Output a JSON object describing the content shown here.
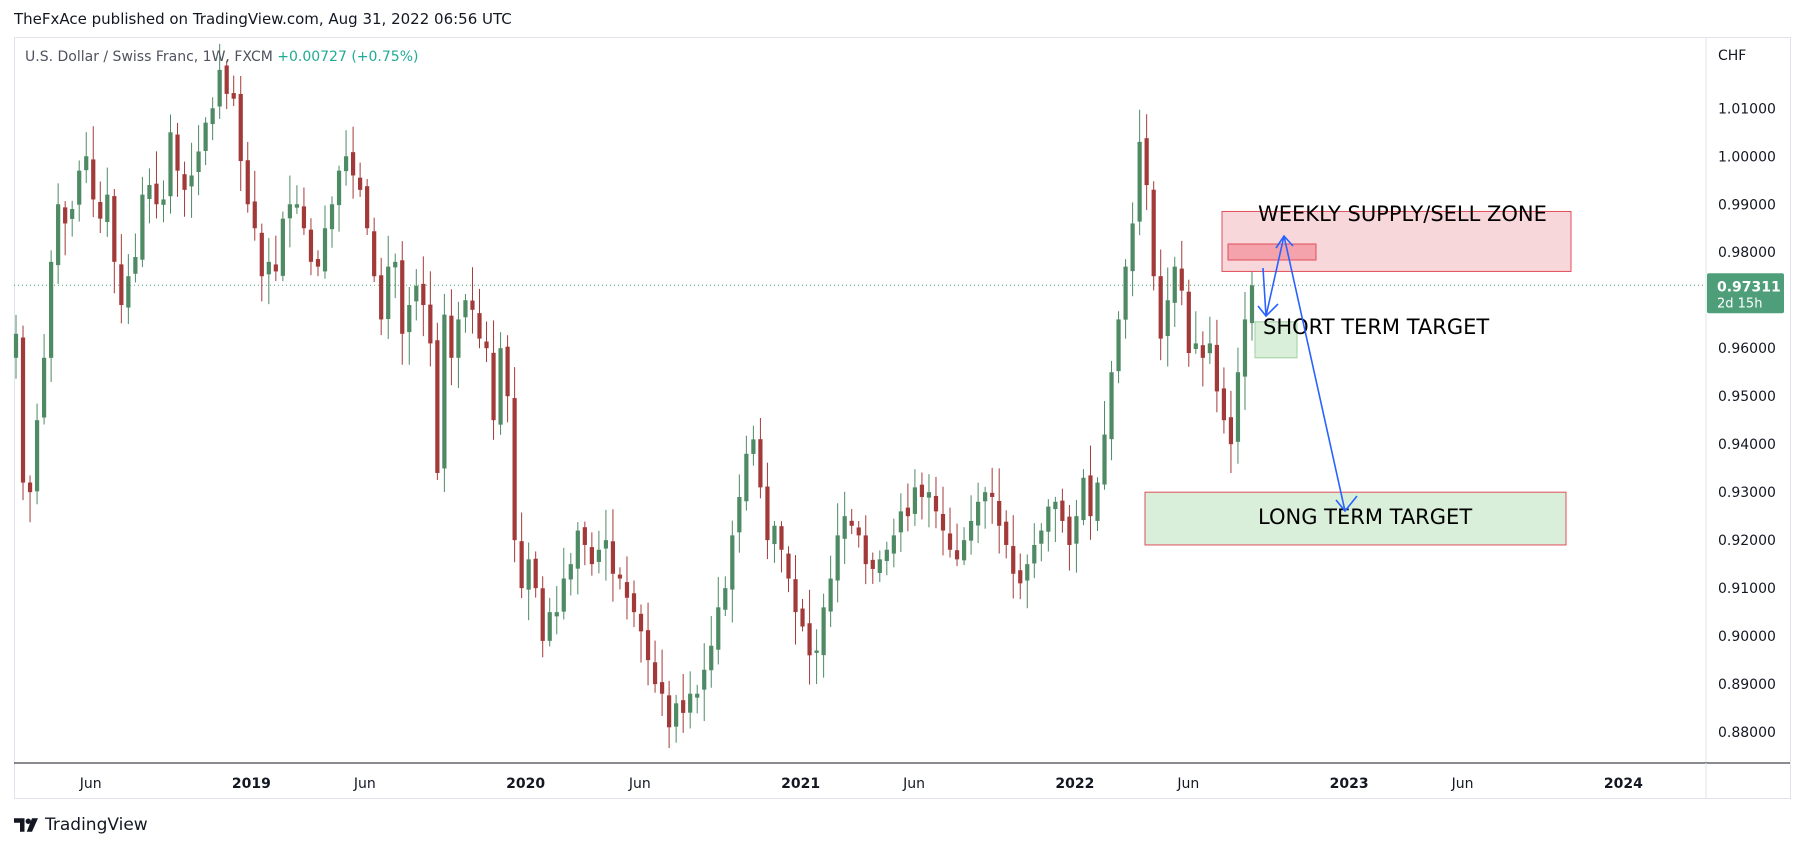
{
  "header": {
    "published_by": "TheFxAce published on TradingView.com, Aug 31, 2022 06:56 UTC",
    "symbol_desc": "U.S. Dollar / Swiss Franc, 1W, FXCM",
    "change": "+0.00727 (+0.75%)"
  },
  "footer": {
    "brand": "TradingView"
  },
  "colors": {
    "up": "#4e8a64",
    "down": "#a33a3a",
    "supply_zone": "#f8d7da",
    "target_zone": "#d9efd9",
    "arrow": "#2962ff",
    "price_line": "#4e9e7a"
  },
  "chart_data": {
    "type": "candlestick",
    "symbol": "U.S. Dollar / Swiss Franc",
    "timeframe": "1W",
    "source": "FXCM",
    "currency_label": "CHF",
    "ylim": [
      0.877,
      1.0235
    ],
    "y_ticks": [
      "1.01000",
      "1.00000",
      "0.99000",
      "0.98000",
      "0.97000",
      "0.96000",
      "0.95000",
      "0.94000",
      "0.93000",
      "0.92000",
      "0.91000",
      "0.90000",
      "0.89000",
      "0.88000"
    ],
    "x_ticks": [
      {
        "label": "Jun",
        "bold": false,
        "date": "2018-06-01"
      },
      {
        "label": "2019",
        "bold": true,
        "date": "2019-01-01"
      },
      {
        "label": "Jun",
        "bold": false,
        "date": "2019-06-01"
      },
      {
        "label": "2020",
        "bold": true,
        "date": "2020-01-01"
      },
      {
        "label": "Jun",
        "bold": false,
        "date": "2020-06-01"
      },
      {
        "label": "2021",
        "bold": true,
        "date": "2021-01-01"
      },
      {
        "label": "Jun",
        "bold": false,
        "date": "2021-06-01"
      },
      {
        "label": "2022",
        "bold": true,
        "date": "2022-01-01"
      },
      {
        "label": "Jun",
        "bold": false,
        "date": "2022-06-01"
      },
      {
        "label": "2023",
        "bold": true,
        "date": "2023-01-01"
      },
      {
        "label": "Jun",
        "bold": false,
        "date": "2023-06-01"
      },
      {
        "label": "2024",
        "bold": true,
        "date": "2024-01-01"
      }
    ],
    "x_range": [
      "2018-02-19",
      "2024-04-20"
    ],
    "last_price": 0.97311,
    "last_price_label": "0.97311",
    "countdown_label": "2d 15h",
    "close_series": [
      0.963,
      0.932,
      0.93,
      0.945,
      0.958,
      0.978,
      0.99,
      0.986,
      0.989,
      0.997,
      1.0,
      0.991,
      0.987,
      0.992,
      0.978,
      0.969,
      0.975,
      0.979,
      0.992,
      0.994,
      0.99,
      0.991,
      1.005,
      0.997,
      0.993,
      0.996,
      1.001,
      1.007,
      1.01,
      1.018,
      1.013,
      1.012,
      0.999,
      0.99,
      0.985,
      0.975,
      0.978,
      0.976,
      0.987,
      0.99,
      0.99,
      0.985,
      0.978,
      0.977,
      0.985,
      0.99,
      0.997,
      1.0,
      0.996,
      0.993,
      0.985,
      0.975,
      0.966,
      0.977,
      0.978,
      0.963,
      0.969,
      0.973,
      0.969,
      0.961,
      0.934,
      0.967,
      0.958,
      0.966,
      0.97,
      0.968,
      0.962,
      0.96,
      0.945,
      0.96,
      0.95,
      0.92,
      0.91,
      0.916,
      0.91,
      0.899,
      0.905,
      0.905,
      0.912,
      0.915,
      0.922,
      0.919,
      0.915,
      0.918,
      0.92,
      0.913,
      0.912,
      0.908,
      0.905,
      0.901,
      0.895,
      0.89,
      0.888,
      0.881,
      0.886,
      0.884,
      0.888,
      0.888,
      0.893,
      0.898,
      0.906,
      0.91,
      0.921,
      0.929,
      0.938,
      0.941,
      0.931,
      0.92,
      0.923,
      0.918,
      0.912,
      0.905,
      0.902,
      0.896,
      0.897,
      0.906,
      0.912,
      0.921,
      0.925,
      0.923,
      0.921,
      0.915,
      0.914,
      0.916,
      0.918,
      0.921,
      0.926,
      0.925,
      0.931,
      0.929,
      0.93,
      0.926,
      0.922,
      0.918,
      0.916,
      0.92,
      0.924,
      0.928,
      0.93,
      0.929,
      0.923,
      0.919,
      0.913,
      0.911,
      0.915,
      0.919,
      0.922,
      0.927,
      0.928,
      0.924,
      0.919,
      0.925,
      0.933,
      0.925,
      0.932,
      0.942,
      0.955,
      0.966,
      0.977,
      0.986,
      1.003,
      0.994,
      0.975,
      0.962,
      0.97,
      0.977,
      0.972,
      0.959,
      0.961,
      0.958,
      0.961,
      0.951,
      0.945,
      0.94,
      0.955,
      0.966,
      0.9731
    ],
    "annotations": [
      {
        "kind": "zone",
        "label": "WEEKLY SUPPLY/SELL ZONE",
        "y_top": 0.9885,
        "y_bottom": 0.976
      },
      {
        "kind": "zone",
        "label": "SHORT TERM TARGET",
        "y_top": 0.9655,
        "y_bottom": 0.958
      },
      {
        "kind": "zone",
        "label": "LONG TERM TARGET",
        "y_top": 0.93,
        "y_bottom": 0.919
      }
    ]
  }
}
